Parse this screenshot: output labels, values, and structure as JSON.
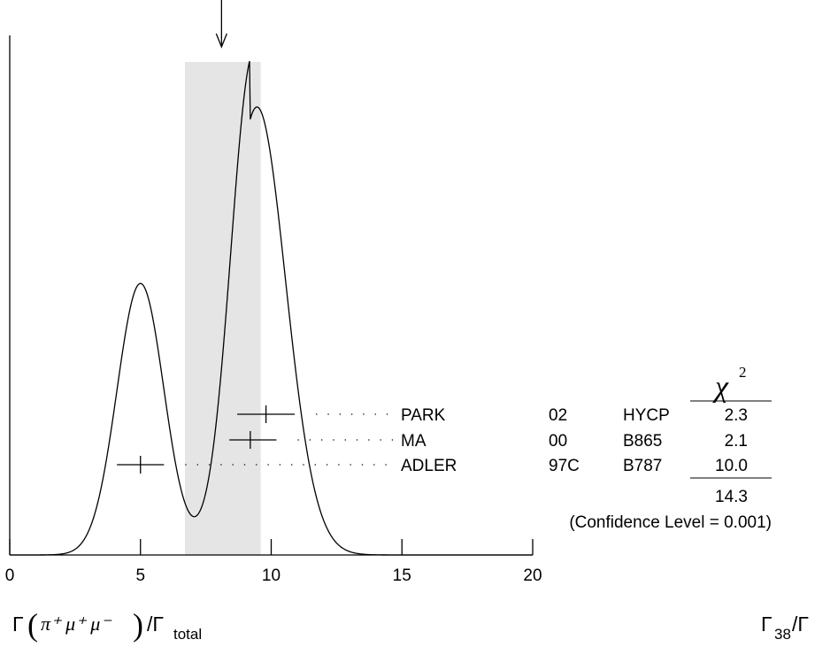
{
  "chart_data": {
    "type": "ideogram",
    "x_ticks": [
      "0",
      "5",
      "10",
      "15",
      "20"
    ],
    "xlim": [
      0,
      20
    ],
    "weighted_average": 8.1,
    "error_band": [
      6.7,
      9.6
    ],
    "measurements": [
      {
        "name": "PARK",
        "year": "02",
        "code": "HYCP",
        "chi2": "2.3",
        "value": 9.8,
        "error_low": 1.1,
        "error_high": 1.1
      },
      {
        "name": "MA",
        "year": "00",
        "code": "B865",
        "chi2": "2.1",
        "value": 9.2,
        "error_low": 0.8,
        "error_high": 1.0
      },
      {
        "name": "ADLER",
        "year": "97C",
        "code": "B787",
        "chi2": "10.0",
        "value": 5.0,
        "error_low": 0.9,
        "error_high": 0.9
      }
    ],
    "chi2_header": "χ",
    "chi2_header_power": "2",
    "chi2_total": "14.3",
    "confidence_level": "(Confidence Level = 0.001)",
    "xlabel_prefix": "Γ",
    "xlabel_formula": "π⁺ μ⁺ μ⁻",
    "xlabel_suffix": "/Γ",
    "xlabel_subscript": "total",
    "right_label": "Γ",
    "right_label_subscript": "38",
    "right_label_suffix": "/Γ"
  }
}
